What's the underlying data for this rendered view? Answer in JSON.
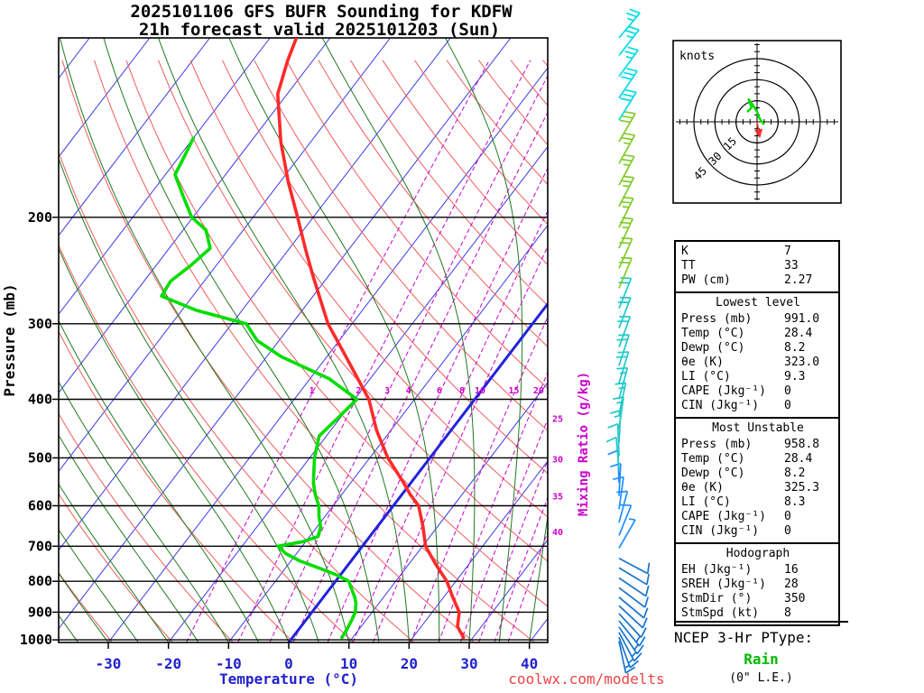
{
  "title": {
    "line1": "2025101106 GFS BUFR Sounding for KDFW",
    "line2": "21h forecast valid 2025101203 (Sun)"
  },
  "axes": {
    "pressure_label": "Pressure (mb)",
    "temperature_label": "Temperature (°C)",
    "mixing_ratio_label": "Mixing Ratio (g/kg)",
    "pressure_ticks": [
      200,
      300,
      400,
      500,
      600,
      700,
      800,
      900,
      1000
    ],
    "temperature_ticks": [
      -30,
      -20,
      -10,
      0,
      10,
      20,
      30,
      40
    ]
  },
  "watermark": "coolwx.com/modelts",
  "colors": {
    "temperature_trace": "#ff2a2a",
    "dewpoint_trace": "#00dd00",
    "isotherm": "#3a3ae6",
    "isotherm_highlight": "#2222dd",
    "dry_adiabat": "#f25c5c",
    "moist_adiabat": "#1f7a1f",
    "mixing_ratio": "#cc00cc",
    "watermark": "#ee4444",
    "ptype_value": "#00bb00",
    "hodograph_trace": "#00dd00",
    "storm_motion": "#ff2a2a"
  },
  "chart_data": {
    "type": "skewt_logp_sounding",
    "station": "KDFW",
    "pressure_top_mb": 101,
    "pressure_bottom_mb": 1010,
    "pressure_gridlines_mb": [
      200,
      300,
      400,
      500,
      600,
      700,
      800,
      900,
      1000
    ],
    "isotherms_c": {
      "min": -120,
      "max": 40,
      "step": 10,
      "highlight_c": 0
    },
    "dry_adiabats_theta_c": {
      "min": -40,
      "max": 190,
      "step": 10
    },
    "moist_adiabats_start_c": {
      "min": -60,
      "max": 45,
      "step": 5
    },
    "mixing_ratio_gkg": [
      1,
      2,
      3,
      4,
      6,
      8,
      10,
      15,
      20,
      25,
      30,
      35,
      40
    ],
    "mixing_ratio_inline_max": 20,
    "temperature_profile": {
      "pressure_mb": [
        991,
        950,
        900,
        850,
        800,
        750,
        700,
        650,
        600,
        575,
        550,
        500,
        450,
        400,
        350,
        300,
        250,
        225,
        200,
        175,
        150,
        125,
        110,
        101
      ],
      "temp_c": [
        28.4,
        26.0,
        24.5,
        21.5,
        18.5,
        14.5,
        10.5,
        7.6,
        4.2,
        1.4,
        -1.2,
        -7.0,
        -12.4,
        -17.6,
        -25.2,
        -34.0,
        -42.6,
        -47.4,
        -52.6,
        -58.6,
        -65.0,
        -71.6,
        -74.2,
        -75.6
      ]
    },
    "dewpoint_profile": {
      "pressure_mb": [
        991,
        960,
        925,
        900,
        870,
        850,
        820,
        800,
        780,
        760,
        740,
        720,
        700,
        688,
        675,
        650,
        625,
        600,
        575,
        550,
        500,
        460,
        430,
        400,
        370,
        340,
        320,
        300,
        285,
        270,
        255,
        240,
        225,
        210,
        200,
        185,
        170,
        158,
        148
      ],
      "temp_c": [
        8.2,
        8.0,
        7.6,
        7.2,
        6.2,
        5.2,
        3.4,
        2.2,
        -0.8,
        -4.6,
        -8.6,
        -11.8,
        -14.0,
        -10.5,
        -8.6,
        -9.4,
        -11.0,
        -12.4,
        -14.4,
        -16.2,
        -19.2,
        -21.2,
        -20.4,
        -19.6,
        -26.8,
        -37.6,
        -43.6,
        -47.6,
        -57.6,
        -65.2,
        -65.6,
        -64.2,
        -63.2,
        -66.2,
        -70.2,
        -74.2,
        -78.4,
        -79.2,
        -80.0
      ]
    },
    "wind_barbs": [
      {
        "p": 1005,
        "dir": 168,
        "spd": 15,
        "color": "#1874cd"
      },
      {
        "p": 990,
        "dir": 160,
        "spd": 15,
        "color": "#1874cd"
      },
      {
        "p": 972,
        "dir": 152,
        "spd": 15,
        "color": "#1874cd"
      },
      {
        "p": 952,
        "dir": 146,
        "spd": 15,
        "color": "#1874cd"
      },
      {
        "p": 930,
        "dir": 141,
        "spd": 15,
        "color": "#1874cd"
      },
      {
        "p": 905,
        "dir": 137,
        "spd": 10,
        "color": "#1874cd"
      },
      {
        "p": 878,
        "dir": 133,
        "spd": 10,
        "color": "#1874cd"
      },
      {
        "p": 850,
        "dir": 130,
        "spd": 10,
        "color": "#1874cd"
      },
      {
        "p": 820,
        "dir": 127,
        "spd": 10,
        "color": "#1874cd"
      },
      {
        "p": 790,
        "dir": 124,
        "spd": 10,
        "color": "#1874cd"
      },
      {
        "p": 760,
        "dir": 121,
        "spd": 10,
        "color": "#1874cd"
      },
      {
        "p": 733,
        "dir": 118,
        "spd": 10,
        "color": "#1874cd"
      },
      {
        "p": 705,
        "dir": 30,
        "spd": 5,
        "color": "#1e90ff"
      },
      {
        "p": 672,
        "dir": 22,
        "spd": 10,
        "color": "#1e90ff"
      },
      {
        "p": 640,
        "dir": 15,
        "spd": 10,
        "color": "#1e90ff"
      },
      {
        "p": 608,
        "dir": 8,
        "spd": 10,
        "color": "#1e90ff"
      },
      {
        "p": 578,
        "dir": 3,
        "spd": 10,
        "color": "#1e90ff"
      },
      {
        "p": 550,
        "dir": 358,
        "spd": 10,
        "color": "#1e90ff"
      },
      {
        "p": 523,
        "dir": 355,
        "spd": 10,
        "color": "#20c8c8"
      },
      {
        "p": 497,
        "dir": 358,
        "spd": 10,
        "color": "#20c8c8"
      },
      {
        "p": 472,
        "dir": 3,
        "spd": 15,
        "color": "#20c8c8"
      },
      {
        "p": 448,
        "dir": 8,
        "spd": 15,
        "color": "#20c8c8"
      },
      {
        "p": 424,
        "dir": 12,
        "spd": 15,
        "color": "#20c8c8"
      },
      {
        "p": 400,
        "dir": 15,
        "spd": 15,
        "color": "#20c8c8"
      },
      {
        "p": 376,
        "dir": 17,
        "spd": 20,
        "color": "#20c8c8"
      },
      {
        "p": 352,
        "dir": 18,
        "spd": 20,
        "color": "#20c8c8"
      },
      {
        "p": 328,
        "dir": 20,
        "spd": 20,
        "color": "#20c8c8"
      },
      {
        "p": 305,
        "dir": 21,
        "spd": 20,
        "color": "#20c8c8"
      },
      {
        "p": 283,
        "dir": 22,
        "spd": 20,
        "color": "#20c8c8"
      },
      {
        "p": 262,
        "dir": 23,
        "spd": 20,
        "color": "#80cc28"
      },
      {
        "p": 243,
        "dir": 24,
        "spd": 20,
        "color": "#80cc28"
      },
      {
        "p": 225,
        "dir": 25,
        "spd": 25,
        "color": "#80cc28"
      },
      {
        "p": 208,
        "dir": 26,
        "spd": 25,
        "color": "#80cc28"
      },
      {
        "p": 192,
        "dir": 27,
        "spd": 25,
        "color": "#80cc28"
      },
      {
        "p": 177,
        "dir": 28,
        "spd": 25,
        "color": "#80cc28"
      },
      {
        "p": 163,
        "dir": 29,
        "spd": 25,
        "color": "#80cc28"
      },
      {
        "p": 150,
        "dir": 30,
        "spd": 30,
        "color": "#80cc28"
      },
      {
        "p": 138,
        "dir": 32,
        "spd": 30,
        "color": "#00dce6"
      },
      {
        "p": 127,
        "dir": 34,
        "spd": 30,
        "color": "#00dce6"
      },
      {
        "p": 117,
        "dir": 36,
        "spd": 25,
        "color": "#00dce6"
      },
      {
        "p": 108,
        "dir": 38,
        "spd": 25,
        "color": "#00dce6"
      },
      {
        "p": 101,
        "dir": 40,
        "spd": 25,
        "color": "#00dce6"
      }
    ]
  },
  "hodograph": {
    "unit_label": "knots",
    "rings_kt": [
      15,
      30,
      45
    ],
    "ring_labels": [
      "15",
      "30",
      "45"
    ],
    "trace_uv_kt": [
      [
        5,
        -2
      ],
      [
        2,
        2
      ],
      [
        0,
        7
      ],
      [
        -3,
        12
      ],
      [
        -6,
        16
      ],
      [
        -4,
        10
      ],
      [
        -7,
        7
      ]
    ],
    "storm_motion": {
      "dir_deg": 350,
      "speed_kt": 8
    }
  },
  "panel": {
    "sections": [
      {
        "rows": [
          [
            "K",
            "7"
          ],
          [
            "TT",
            "33"
          ],
          [
            "PW (cm)",
            "2.27"
          ]
        ]
      },
      {
        "header": "Lowest level",
        "rows": [
          [
            "Press (mb)",
            "991.0"
          ],
          [
            "Temp (°C)",
            "28.4"
          ],
          [
            "Dewp (°C)",
            "8.2"
          ],
          [
            "θe (K)",
            "323.0"
          ],
          [
            "LI (°C)",
            "9.3"
          ],
          [
            "CAPE (Jkg⁻¹)",
            "0"
          ],
          [
            "CIN (Jkg⁻¹)",
            "0"
          ]
        ]
      },
      {
        "header": "Most Unstable",
        "rows": [
          [
            "Press (mb)",
            "958.8"
          ],
          [
            "Temp (°C)",
            "28.4"
          ],
          [
            "Dewp (°C)",
            "8.2"
          ],
          [
            "θe (K)",
            "325.3"
          ],
          [
            "LI (°C)",
            "8.3"
          ],
          [
            "CAPE (Jkg⁻¹)",
            "0"
          ],
          [
            "CIN (Jkg⁻¹)",
            "0"
          ]
        ]
      },
      {
        "header": "Hodograph",
        "rows": [
          [
            "EH (Jkg⁻¹)",
            "16"
          ],
          [
            "SREH (Jkg⁻¹)",
            "28"
          ],
          [
            "StmDir (°)",
            "350"
          ],
          [
            "StmSpd (kt)",
            "8"
          ]
        ]
      }
    ]
  },
  "ptype": {
    "heading": "NCEP 3-Hr PType:",
    "value": "Rain",
    "extra": "(0\" L.E.)"
  }
}
